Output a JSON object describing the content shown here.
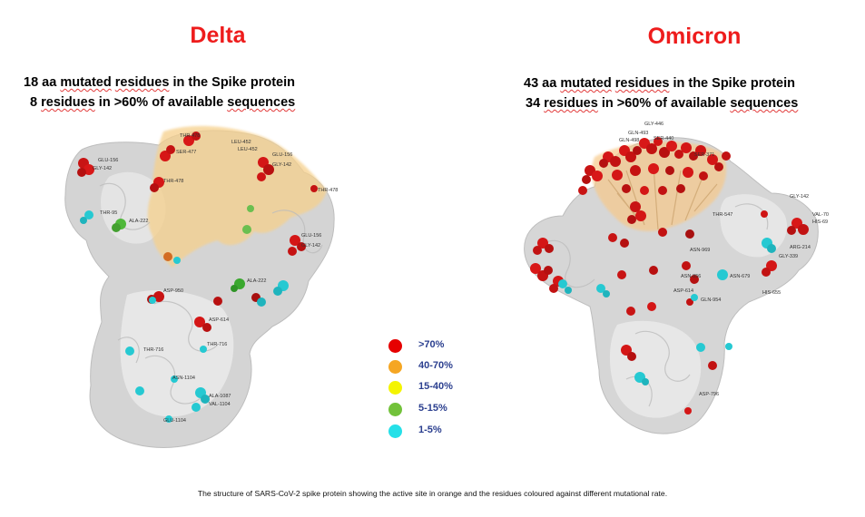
{
  "delta": {
    "title": "Delta",
    "line1": {
      "count": "18 aa",
      "w1": "mutated",
      "w2": "residues",
      "rest": "in the Spike protein"
    },
    "line2": {
      "count": "8",
      "w1": "residues",
      "rest": "in >60% of available",
      "w2": "sequences"
    },
    "labels": [
      "THR-478",
      "LEU-452",
      "GLU-156",
      "GLY-142",
      "GLU-156",
      "GLY-142",
      "THR-478",
      "THR-95",
      "ALA-222",
      "GLU-156",
      "GLY-142",
      "LEU-452",
      "SER-477",
      "THR-478",
      "ALA-222",
      "ASP-950",
      "ASP-614",
      "THR-716",
      "ASN-1104",
      "VAL-1104",
      "ALA-1087",
      "GLU-1104",
      "THR-716"
    ]
  },
  "omicron": {
    "title": "Omicron",
    "line1": {
      "count": "43 aa",
      "w1": "mutated",
      "w2": "residues",
      "rest": "in the Spike protein"
    },
    "line2": {
      "count": "34",
      "w1": "residues",
      "rest": "in >60% of available",
      "w2": "sequences"
    },
    "labels": [
      "GLY-446",
      "GLN-493",
      "SER-440",
      "GLN-498",
      "SER-371",
      "THR-547",
      "GLY-142",
      "VAL-70",
      "HIS-69",
      "ARG-214",
      "ASN-969",
      "ASN-856",
      "ASP-614",
      "GLN-954",
      "ASN-679",
      "HIS-655",
      "ASP-796",
      "GLY-339"
    ]
  },
  "legend": [
    {
      "label": ">70%",
      "color": "#e60000"
    },
    {
      "label": "40-70%",
      "color": "#f5a623"
    },
    {
      "label": "15-40%",
      "color": "#f4f400"
    },
    {
      "label": "5-15%",
      "color": "#72c23a"
    },
    {
      "label": "1-5%",
      "color": "#25e0e8"
    }
  ],
  "caption": "The structure of SARS-CoV-2 spike protein showing the active site in orange and the residues coloured against different mutational rate."
}
